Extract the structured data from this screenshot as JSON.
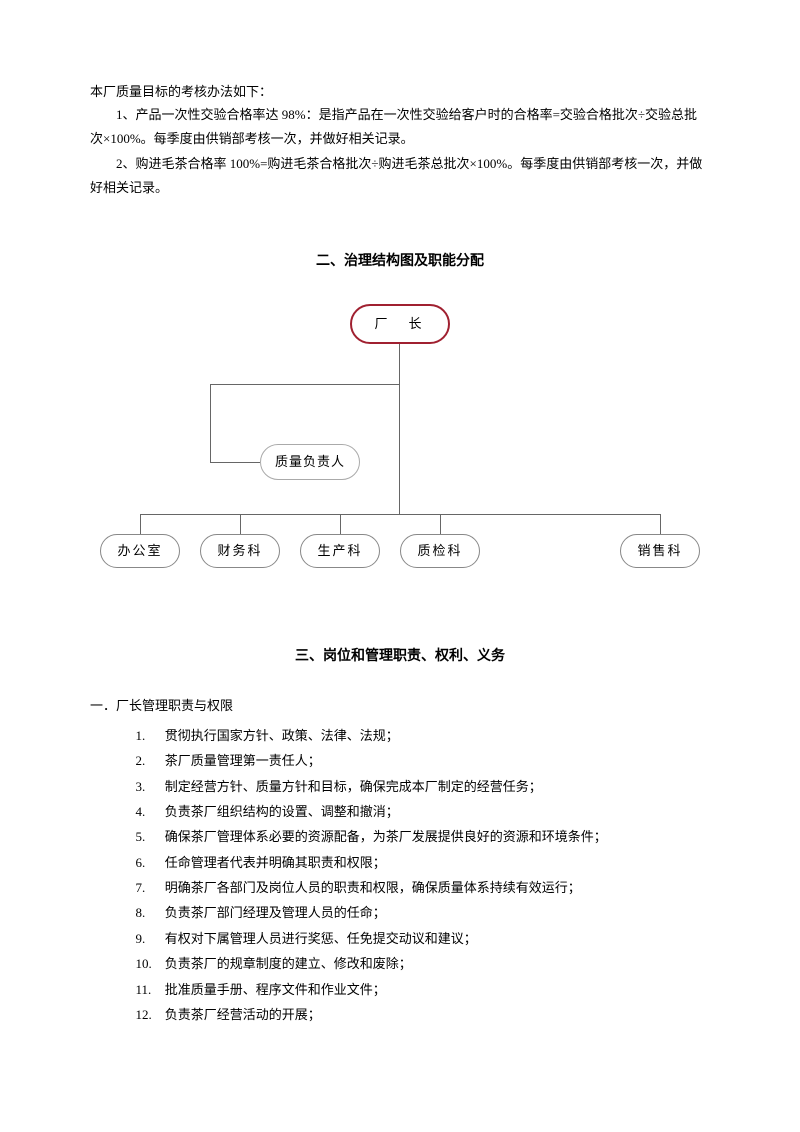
{
  "intro": {
    "line0": "本厂质量目标的考核办法如下：",
    "p1": "1、产品一次性交验合格率达 98%：是指产品在一次性交验给客户时的合格率=交验合格批次÷交验总批次×100%。每季度由供销部考核一次，并做好相关记录。",
    "p2": "2、购进毛茶合格率 100%=购进毛茶合格批次÷购进毛茶总批次×100%。每季度由供销部考核一次，并做好相关记录。"
  },
  "section2": {
    "title": "二、治理结构图及职能分配",
    "chart": {
      "type": "org-chart",
      "top_node": {
        "label": "厂　长",
        "border_color": "#a02030"
      },
      "mid_node": {
        "label": "质量负责人",
        "border_color": "#aaaaaa"
      },
      "bottom_nodes": [
        {
          "label": "办公室"
        },
        {
          "label": "财务科"
        },
        {
          "label": "生产科"
        },
        {
          "label": "质检科"
        },
        {
          "label": "销售科"
        }
      ],
      "line_color": "#666666",
      "background": "#ffffff"
    }
  },
  "section3": {
    "title": "三、岗位和管理职责、权利、义务",
    "subhead": "一．厂长管理职责与权限",
    "items": [
      "贯彻执行国家方针、政策、法律、法规；",
      "茶厂质量管理第一责任人；",
      "制定经营方针、质量方针和目标，确保完成本厂制定的经营任务；",
      "负责茶厂组织结构的设置、调整和撤消；",
      "确保茶厂管理体系必要的资源配备，为茶厂发展提供良好的资源和环境条件；",
      "任命管理者代表并明确其职责和权限；",
      "明确茶厂各部门及岗位人员的职责和权限，确保质量体系持续有效运行；",
      "负责茶厂部门经理及管理人员的任命；",
      "有权对下属管理人员进行奖惩、任免提交动议和建议；",
      "负责茶厂的规章制度的建立、修改和废除；",
      "批准质量手册、程序文件和作业文件；",
      "负责茶厂经营活动的开展；"
    ]
  }
}
